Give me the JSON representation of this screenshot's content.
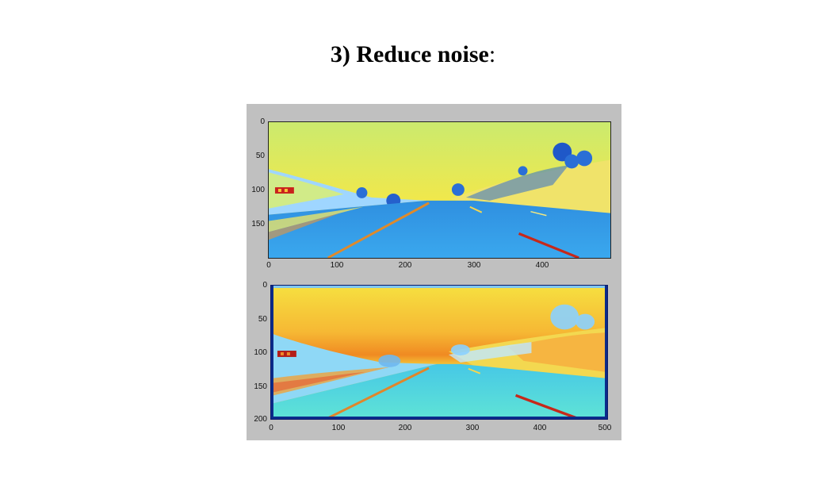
{
  "slide": {
    "title_main": "3) Reduce noise",
    "title_suffix": ":"
  },
  "figure": {
    "top_plot": {
      "image_name": "road-image-grayscale",
      "x_ticks": [
        "0",
        "100",
        "200",
        "300",
        "400"
      ],
      "y_ticks": [
        "0",
        "50",
        "100",
        "150"
      ]
    },
    "bottom_plot": {
      "image_name": "road-image-blurred",
      "x_ticks": [
        "0",
        "100",
        "200",
        "300",
        "400",
        "500"
      ],
      "y_ticks": [
        "0",
        "50",
        "100",
        "150",
        "200"
      ]
    }
  },
  "colors": {
    "panel_background": "#c0c0c0",
    "sky_top": "#dde86a",
    "sky_horizon": "#f29a2a",
    "road": "#3aa3e6",
    "lane_line": "#d02a1a"
  }
}
